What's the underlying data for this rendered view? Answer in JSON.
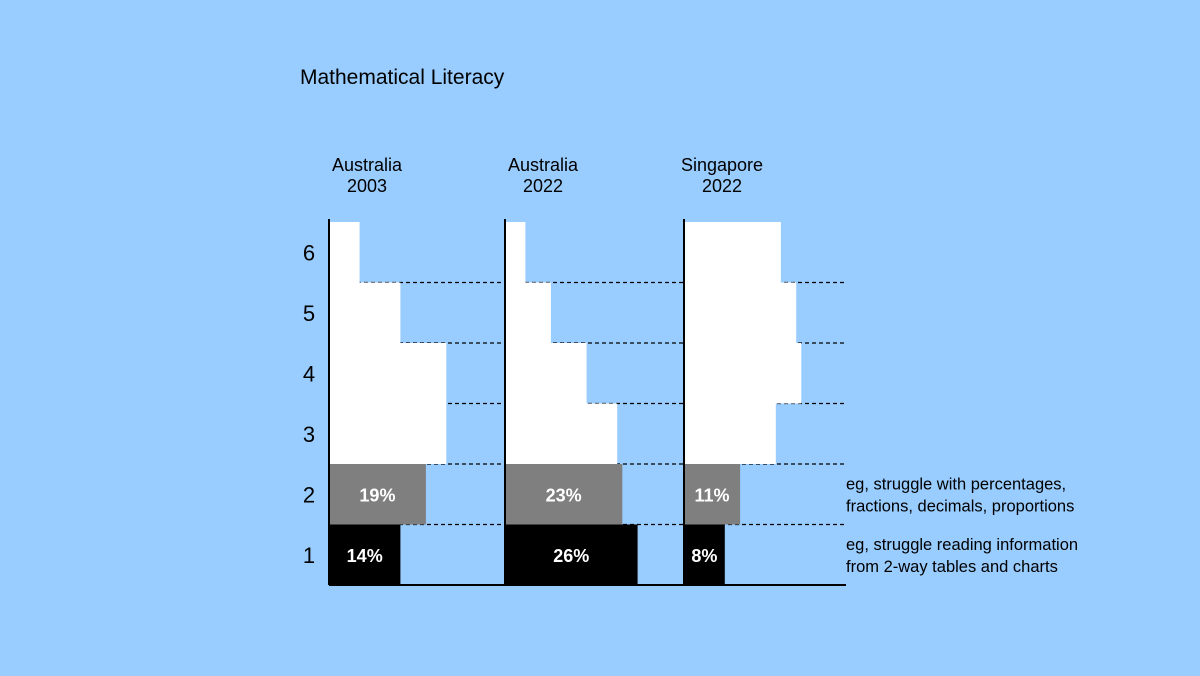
{
  "chart_data": {
    "type": "bar",
    "title": "Mathematical Literacy",
    "levels": [
      "1",
      "2",
      "3",
      "4",
      "5",
      "6"
    ],
    "groups": [
      {
        "name": "Australia",
        "year": "2003",
        "values": [
          14,
          19,
          23,
          23,
          14,
          6
        ],
        "labels": [
          "14%",
          "19%",
          "",
          "",
          "",
          ""
        ]
      },
      {
        "name": "Australia",
        "year": "2022",
        "values": [
          26,
          23,
          22,
          16,
          9,
          4
        ],
        "labels": [
          "26%",
          "23%",
          "",
          "",
          "",
          ""
        ]
      },
      {
        "name": "Singapore",
        "year": "2022",
        "values": [
          8,
          11,
          18,
          23,
          22,
          19
        ],
        "labels": [
          "8%",
          "11%",
          "",
          "",
          "",
          ""
        ]
      }
    ],
    "annotations": [
      {
        "level": "2",
        "lines": [
          "eg, struggle with percentages,",
          "fractions, decimals, proportions"
        ]
      },
      {
        "level": "1",
        "lines": [
          "eg, struggle reading information",
          "from 2-way tables and charts"
        ]
      }
    ],
    "colors": {
      "background": "#99CCFF",
      "level1": "#000000",
      "level2": "#7F7F7F",
      "upper": "#FFFFFF"
    }
  }
}
